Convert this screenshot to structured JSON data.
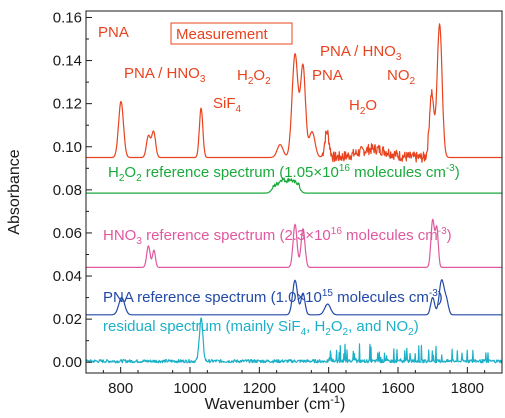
{
  "chart_data": {
    "type": "line",
    "xlabel": "Wavenumber (cm",
    "xlabel_sup": "-1",
    "xlabel_close": ")",
    "ylabel": "Absorbance",
    "xlim": [
      700,
      1900
    ],
    "ylim": [
      -0.005,
      0.163
    ],
    "x_ticks": [
      800,
      1000,
      1200,
      1400,
      1600,
      1800
    ],
    "y_ticks": [
      0.0,
      0.02,
      0.04,
      0.06,
      0.08,
      0.1,
      0.12,
      0.14,
      0.16
    ],
    "x_tick_labels": [
      "800",
      "1000",
      "1200",
      "1400",
      "1600",
      "1800"
    ],
    "y_tick_labels": [
      "0.00",
      "0.02",
      "0.04",
      "0.06",
      "0.08",
      "0.10",
      "0.12",
      "0.14",
      "0.16"
    ],
    "series": [
      {
        "key": "measurement",
        "color": "#e8431e",
        "baseline": 0.095,
        "peaks": [
          [
            801,
            0.026,
            10
          ],
          [
            880,
            0.01,
            8
          ],
          [
            895,
            0.012,
            8
          ],
          [
            1032,
            0.023,
            7
          ],
          [
            1260,
            0.006,
            12
          ],
          [
            1303,
            0.048,
            12
          ],
          [
            1326,
            0.042,
            10
          ],
          [
            1352,
            0.012,
            12
          ],
          [
            1395,
            0.012,
            9
          ],
          [
            1530,
            0.004,
            60
          ],
          [
            1697,
            0.03,
            9
          ],
          [
            1720,
            0.062,
            10
          ]
        ],
        "noise_region": [
          1380,
          1700
        ],
        "noise_amp": 0.005,
        "noise_base": 0.0
      },
      {
        "key": "h2o2",
        "color": "#1aaa3c",
        "baseline": 0.0785,
        "peaks": [
          [
            1245,
            0.003,
            12
          ],
          [
            1266,
            0.006,
            14
          ],
          [
            1290,
            0.006,
            14
          ],
          [
            1310,
            0.004,
            10
          ]
        ],
        "noise_region": [
          1240,
          1320
        ],
        "noise_amp": 0.002,
        "noise_base": 0.0
      },
      {
        "key": "hno3",
        "color": "#e0589e",
        "baseline": 0.044,
        "peaks": [
          [
            880,
            0.01,
            7
          ],
          [
            896,
            0.008,
            6
          ],
          [
            1303,
            0.02,
            8
          ],
          [
            1326,
            0.018,
            8
          ],
          [
            1700,
            0.022,
            7
          ],
          [
            1712,
            0.018,
            6
          ]
        ],
        "noise_region": [
          0,
          0
        ],
        "noise_amp": 0.0,
        "noise_base": 0.0
      },
      {
        "key": "pna",
        "color": "#2249a8",
        "baseline": 0.022,
        "peaks": [
          [
            803,
            0.008,
            12
          ],
          [
            1303,
            0.016,
            10
          ],
          [
            1326,
            0.01,
            8
          ],
          [
            1397,
            0.005,
            12
          ],
          [
            1700,
            0.008,
            8
          ],
          [
            1726,
            0.016,
            10
          ],
          [
            1740,
            0.006,
            8
          ]
        ],
        "noise_region": [
          0,
          0
        ],
        "noise_amp": 0.0,
        "noise_base": 0.0
      },
      {
        "key": "residual",
        "color": "#1cb0c8",
        "baseline": 0.0005,
        "peaks": [
          [
            1032,
            0.02,
            7
          ]
        ],
        "noise_region": [
          700,
          1900
        ],
        "noise_amp": 0.0015,
        "noise_base": 0.0,
        "spike_region": [
          1380,
          1860
        ],
        "spike_amp": 0.008
      }
    ],
    "annotations": {
      "pna1": "PNA",
      "measurement": "Measurement",
      "pna_hno3_1": "PNA / HNO",
      "pna_hno3_1_sub": "3",
      "sif4": "SiF",
      "sif4_sub": "4",
      "h2o2": "H",
      "h2o2_sub1": "2",
      "h2o2_mid": "O",
      "h2o2_sub2": "2",
      "pna_hno3_2": "PNA / HNO",
      "pna_hno3_2_sub": "3",
      "pna2": "PNA",
      "no2": "NO",
      "no2_sub": "2",
      "h2o": "H",
      "h2o_sub": "2",
      "h2o_tail": "O",
      "ref_h2o2_a": "H",
      "ref_h2o2_sub1": "2",
      "ref_h2o2_b": "O",
      "ref_h2o2_sub2": "2",
      "ref_h2o2_c": " reference spectrum (1.05×10",
      "ref_h2o2_sup1": "16",
      "ref_h2o2_d": " molecules cm",
      "ref_h2o2_sup2": "-3",
      "ref_h2o2_e": ")",
      "ref_hno3_a": "HNO",
      "ref_hno3_sub": "3",
      "ref_hno3_b": " reference spectrum (2.3×10",
      "ref_hno3_sup1": "16",
      "ref_hno3_c": " molecules cm",
      "ref_hno3_sup2": "-3",
      "ref_hno3_d": ")",
      "ref_pna_a": "PNA reference spectrum (1.0×10",
      "ref_pna_sup1": "15",
      "ref_pna_b": " molecules cm",
      "ref_pna_sup2": "-3",
      "ref_pna_c": ")",
      "res_a": "residual spectrum (mainly SiF",
      "res_sub1": "4",
      "res_b": ", H",
      "res_sub2": "2",
      "res_c": "O",
      "res_sub3": "2",
      "res_d": ", and NO",
      "res_sub4": "2",
      "res_e": ")"
    },
    "colors": {
      "measurement": "#e8431e",
      "h2o2": "#1aaa3c",
      "hno3": "#e0589e",
      "pna": "#2249a8",
      "residual": "#1cb0c8",
      "axis": "#1a1a1a"
    },
    "legend": "none",
    "grid": false
  }
}
